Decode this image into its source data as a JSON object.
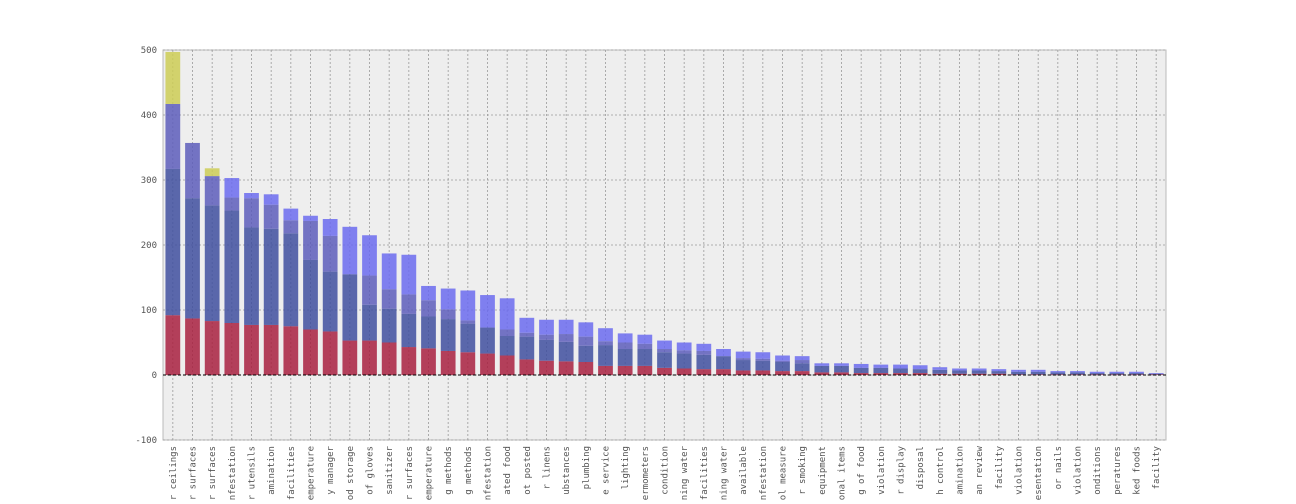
{
  "chart_data": {
    "type": "bar",
    "stacked": true,
    "ylim": [
      -100,
      500
    ],
    "yticks": [
      -100,
      0,
      100,
      200,
      300,
      400,
      500
    ],
    "grid": true,
    "categories": [
      "Floors, walls, ceilings",
      "... surfaces",
      "... surfaces",
      "infestation",
      "... utensils",
      "contamination",
      "facilities",
      "temperature",
      "... manager",
      "... storage",
      "use of gloves",
      "... sanitizer",
      "... surfaces",
      "temperature",
      "... methods",
      "... methods",
      "infestation",
      "... food",
      "... not posted",
      "... or linens",
      "... substances",
      "... plumbing",
      "... service",
      "... lighting",
      "thermometers",
      "condition",
      "... water",
      "facilities",
      "... water",
      "available",
      "infestation",
      "... measure",
      "... smoking",
      "equipment",
      "... items",
      "... of food",
      "violation",
      "... display",
      "... disposal",
      "... control",
      "contamination",
      "... review",
      "... facility",
      "violation",
      "... presentation",
      "... or nails",
      "violation",
      "... conditions",
      "temperatures",
      "... foods",
      "... facility"
    ],
    "category_labels": [
      "r ceilings",
      "r surfaces",
      "r surfaces",
      "nfestation",
      "r utensils",
      "amination",
      "facilities",
      "emperature",
      "y manager",
      "od storage",
      "of gloves",
      "sanitizer",
      "r surfaces",
      "emperature",
      "g methods",
      "g methods",
      "nfestation",
      "ated food",
      "ot posted",
      "r linens",
      "ubstances",
      "plumbing",
      "e service",
      "lighting",
      "ermometers",
      "condition",
      "ning water",
      "facilities",
      "ning water",
      "available",
      "nfestation",
      "ol measure",
      "r smoking",
      "equipment",
      "onal items",
      "g of food",
      "violation",
      "r display",
      "disposal",
      "h control",
      "amination",
      "an review",
      "facility",
      "violation",
      "esentation",
      "or nails",
      "violation",
      "onditions",
      "peratures",
      "ked foods",
      "facility"
    ],
    "series": [
      {
        "color": "#a8203f",
        "values": [
          92,
          87,
          83,
          80,
          77,
          77,
          75,
          70,
          67,
          53,
          53,
          50,
          43,
          41,
          37,
          35,
          33,
          30,
          24,
          22,
          21,
          20,
          14,
          14,
          14,
          11,
          10,
          9,
          9,
          7,
          7,
          6,
          6,
          4,
          4,
          3,
          3,
          3,
          3,
          2,
          2,
          2,
          2,
          1,
          1,
          1,
          1,
          1,
          1,
          1,
          1
        ]
      },
      {
        "color": "#3f4f9f",
        "values": [
          225,
          185,
          178,
          173,
          150,
          148,
          143,
          107,
          92,
          102,
          55,
          52,
          51,
          49,
          49,
          44,
          40,
          30,
          35,
          32,
          30,
          25,
          32,
          26,
          26,
          24,
          23,
          22,
          20,
          16,
          15,
          14,
          12,
          10,
          10,
          8,
          8,
          7,
          6,
          6,
          5,
          5,
          4,
          4,
          4,
          3,
          3,
          2,
          2,
          2,
          1
        ]
      },
      {
        "color": "#5d5dbb",
        "values": [
          100,
          85,
          45,
          20,
          45,
          37,
          20,
          60,
          55,
          0,
          45,
          30,
          30,
          25,
          15,
          5,
          0,
          10,
          6,
          8,
          12,
          14,
          6,
          10,
          8,
          5,
          5,
          6,
          0,
          3,
          3,
          2,
          5,
          0,
          0,
          0,
          0,
          0,
          0,
          0,
          0,
          0,
          0,
          0,
          0,
          0,
          0,
          0,
          0,
          0,
          0
        ]
      },
      {
        "color": "#6b6bef",
        "values": [
          0,
          0,
          0,
          30,
          8,
          16,
          18,
          8,
          26,
          73,
          62,
          55,
          61,
          22,
          32,
          46,
          50,
          48,
          23,
          23,
          22,
          22,
          20,
          14,
          14,
          13,
          12,
          11,
          11,
          10,
          10,
          8,
          6,
          4,
          4,
          6,
          5,
          6,
          6,
          4,
          3,
          3,
          3,
          3,
          3,
          2,
          2,
          2,
          2,
          2,
          1
        ]
      },
      {
        "color": "#cccc55",
        "values": [
          80,
          0,
          12,
          0,
          0,
          0,
          0,
          0,
          0,
          0,
          0,
          0,
          0,
          0,
          0,
          0,
          0,
          0,
          0,
          0,
          0,
          0,
          0,
          0,
          0,
          0,
          0,
          0,
          0,
          0,
          0,
          0,
          0,
          0,
          0,
          0,
          0,
          0,
          0,
          0,
          0,
          0,
          0,
          0,
          0,
          0,
          0,
          0,
          0,
          0,
          0
        ]
      }
    ]
  }
}
